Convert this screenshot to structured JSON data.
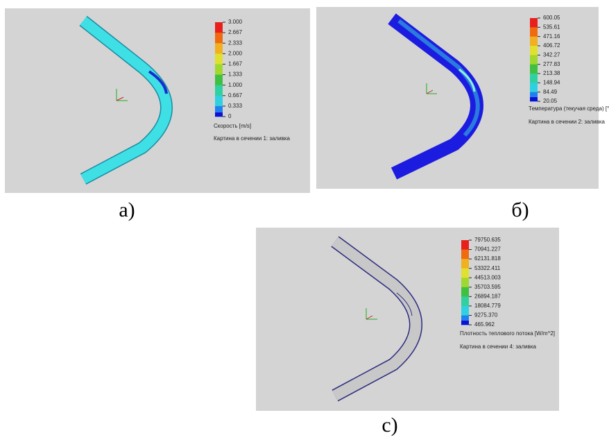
{
  "panels": [
    {
      "label": "а)",
      "legend": {
        "ticks": [
          "3.000",
          "2.667",
          "2.333",
          "2.000",
          "1.667",
          "1.333",
          "1.000",
          "0.667",
          "0.333",
          "0"
        ],
        "quantity": "Скорость [m/s]",
        "caption": "Картина в сечении 1: заливка"
      }
    },
    {
      "label": "б)",
      "legend": {
        "ticks": [
          "600.05",
          "535.61",
          "471.16",
          "406.72",
          "342.27",
          "277.83",
          "213.38",
          "148.94",
          "84.49",
          "20.05"
        ],
        "quantity": "Температура (текучая среда) [°C]",
        "caption": "Картина в сечении 2: заливка"
      }
    },
    {
      "label": "c)",
      "legend": {
        "ticks": [
          "79750.635",
          "70941.227",
          "62131.818",
          "53322.411",
          "44513.003",
          "35703.595",
          "26894.187",
          "18084.779",
          "9275.370",
          "465.962"
        ],
        "quantity": "Плотность теплового потока [W/m^2]",
        "caption": "Картина в сечении 4: заливка"
      }
    }
  ]
}
